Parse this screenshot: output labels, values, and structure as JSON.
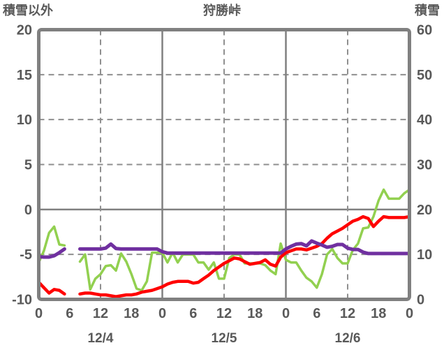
{
  "header": {
    "left_label": "積雪以外",
    "title": "狩勝峠",
    "right_label": "積雪"
  },
  "chart_data": {
    "type": "line",
    "title": "狩勝峠",
    "left_axis": {
      "label": "積雪以外",
      "min": -10,
      "max": 20,
      "ticks": [
        20,
        15,
        10,
        5,
        0,
        -5,
        -10
      ]
    },
    "right_axis": {
      "label": "積雪",
      "min": 0,
      "max": 60,
      "ticks": [
        60,
        50,
        40,
        30,
        20,
        10,
        0
      ]
    },
    "x_axis": {
      "unit": "hour",
      "total_hours": 72,
      "label_interval": 6,
      "hour_labels": [
        "0",
        "6",
        "12",
        "18",
        "0",
        "6",
        "12",
        "18",
        "0",
        "6",
        "12",
        "18",
        "0"
      ],
      "day_labels": [
        {
          "text": "12/4",
          "center_hour": 12
        },
        {
          "text": "12/5",
          "center_hour": 36
        },
        {
          "text": "12/6",
          "center_hour": 60
        }
      ],
      "grid": {
        "solid_at_hours": [
          24,
          48
        ],
        "dashed_at_hours": [
          12,
          36,
          60
        ]
      }
    },
    "grid_colors": {
      "solid": "#808080",
      "dashed": "#8f8f8f",
      "border": "#808080"
    },
    "text_color": "#595959",
    "legend": "none",
    "series": [
      {
        "name": "green-line",
        "color": "#92d050",
        "width": 3.5,
        "axis": "left",
        "values": [
          -5.9,
          -4.6,
          -2.6,
          -1.9,
          -3.9,
          -4.0,
          null,
          null,
          -5.8,
          -5.0,
          -8.9,
          -7.7,
          -7.2,
          -6.3,
          -6.2,
          -6.8,
          -4.9,
          -5.8,
          -7.2,
          -8.8,
          -9.0,
          -8.0,
          -4.8,
          -4.8,
          -4.8,
          -5.9,
          -4.8,
          -5.9,
          -5.0,
          -5.0,
          -5.0,
          -5.9,
          -5.9,
          -6.7,
          -5.9,
          -7.7,
          -7.7,
          -5.4,
          -5.0,
          -5.0,
          -6.0,
          -6.0,
          -6.0,
          -6.0,
          -6.2,
          -6.8,
          -7.2,
          -3.8,
          -5.6,
          -5.9,
          -5.9,
          -6.8,
          -7.6,
          -8.0,
          -8.7,
          -7.2,
          -5.0,
          -4.4,
          -5.4,
          -6.0,
          -6.0,
          -4.5,
          -3.8,
          -2.1,
          -2.0,
          -0.8,
          1.0,
          2.2,
          1.2,
          1.2,
          1.2,
          1.8,
          2.2
        ]
      },
      {
        "name": "red-line",
        "color": "#ff0000",
        "width": 4.5,
        "axis": "left",
        "values": [
          -8.1,
          -8.7,
          -9.3,
          -8.9,
          -9.0,
          -9.4,
          null,
          null,
          -9.4,
          -9.3,
          -9.3,
          -9.4,
          -9.5,
          -9.5,
          -9.6,
          -9.7,
          -9.6,
          -9.5,
          -9.5,
          -9.4,
          -9.2,
          -9.1,
          -9.0,
          -8.8,
          -8.6,
          -8.3,
          -8.1,
          -8.0,
          -8.0,
          -8.0,
          -8.2,
          -8.1,
          -7.7,
          -7.3,
          -6.8,
          -6.4,
          -6.0,
          -5.7,
          -5.4,
          -5.5,
          -5.8,
          -6.1,
          -6.0,
          -5.9,
          -5.6,
          -6.1,
          -6.3,
          -5.3,
          -4.8,
          -4.6,
          -4.4,
          -4.4,
          -4.5,
          -4.3,
          -4.1,
          -3.8,
          -3.2,
          -2.7,
          -2.4,
          -2.1,
          -1.7,
          -1.3,
          -1.1,
          -0.8,
          -1.0,
          -1.9,
          -1.3,
          -0.8,
          -0.9,
          -0.9,
          -0.9,
          -0.9,
          -0.8
        ]
      },
      {
        "name": "purple-line",
        "color": "#7030a0",
        "width": 5,
        "axis": "right",
        "values": [
          9.5,
          9.4,
          9.4,
          9.7,
          10.4,
          11.2,
          null,
          null,
          11.2,
          11.2,
          11.2,
          11.2,
          11.2,
          11.4,
          12.3,
          11.3,
          11.2,
          11.2,
          11.2,
          11.2,
          11.2,
          11.2,
          11.2,
          11.2,
          10.6,
          10.3,
          10.3,
          10.3,
          10.3,
          10.3,
          10.3,
          10.3,
          10.3,
          10.3,
          10.3,
          10.3,
          10.3,
          10.3,
          10.3,
          10.3,
          10.3,
          10.3,
          10.3,
          10.3,
          10.3,
          10.3,
          10.3,
          10.3,
          11.2,
          11.8,
          12.3,
          12.4,
          11.9,
          13.0,
          12.5,
          12.1,
          11.6,
          11.8,
          12.2,
          12.2,
          11.4,
          11.1,
          11.1,
          10.5,
          10.2,
          10.2,
          10.2,
          10.2,
          10.2,
          10.2,
          10.2,
          10.2,
          10.2
        ]
      }
    ]
  }
}
